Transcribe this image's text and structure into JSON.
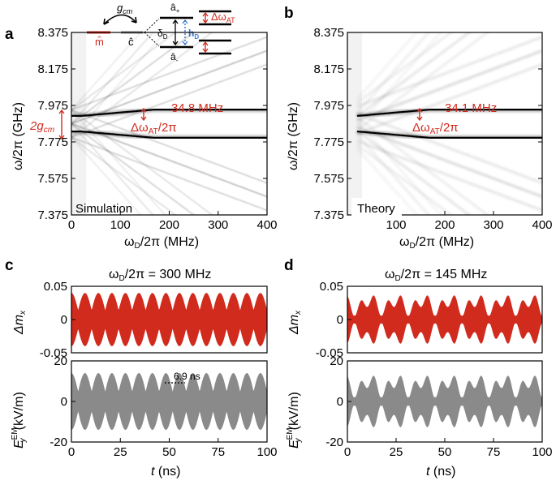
{
  "colors": {
    "red": "#d12b1e",
    "gray": "#8a8a8a",
    "blue": "#3a7bd5",
    "black": "#000000"
  },
  "panel_letters": {
    "a": "a",
    "b": "b",
    "c": "c",
    "d": "d"
  },
  "schematic": {
    "m_label": "m̂",
    "c_label": "ĉ",
    "g_label": "g",
    "g_sub": "cm",
    "a_plus": "â",
    "a_plus_sub": "+",
    "a_minus": "â",
    "a_minus_sub": "-",
    "delta_label": "δ",
    "delta_sub": "D",
    "h_label": "h",
    "h_sub": "D",
    "dw_label": "Δω",
    "dw_sub": "AT"
  },
  "chart_data": [
    {
      "panel": "a",
      "type": "heatmap",
      "title": "",
      "xlabel": "ωD/2π (MHz)",
      "ylabel": "ω/2π (GHz)",
      "xlim": [
        0,
        400
      ],
      "ylim": [
        7.375,
        8.375
      ],
      "x_ticks": [
        "0",
        "100",
        "200",
        "300",
        "400"
      ],
      "y_ticks": [
        "8.375",
        "8.175",
        "7.975",
        "7.775",
        "7.575",
        "7.375"
      ],
      "label": "Simulation",
      "annotation_split": "34.8 MHz",
      "annotation_delta": "ΔωAT/2π",
      "annotation_coupling": "2gcm",
      "upper_branch_end": 7.9525,
      "lower_branch_end": 7.7975
    },
    {
      "panel": "b",
      "type": "heatmap",
      "title": "",
      "xlabel": "ωD/2π (MHz)",
      "ylabel": "ω/2π (GHz)",
      "xlim": [
        0,
        400
      ],
      "ylim": [
        7.375,
        8.375
      ],
      "x_ticks": [
        "100",
        "200",
        "300",
        "400"
      ],
      "y_ticks": [
        "8.375",
        "8.175",
        "7.975",
        "7.775",
        "7.575",
        "7.375"
      ],
      "label": "Theory",
      "annotation_split": "34.1 MHz",
      "annotation_delta": "ΔωAT/2π",
      "upper_branch_end": 7.9525,
      "lower_branch_end": 7.7975
    },
    {
      "panel": "c",
      "type": "line",
      "title": "ωD/2π = 300 MHz",
      "xlabel": "t (ns)",
      "xlim": [
        0,
        100
      ],
      "x_ticks": [
        "0",
        "25",
        "50",
        "75",
        "100"
      ],
      "series": [
        {
          "name": "Δmx",
          "ylabel": "Δmx",
          "ylim": [
            -0.05,
            0.05
          ],
          "y_ticks": [
            "0.05",
            "0",
            "-0.05"
          ],
          "amplitude": 0.04,
          "beat_period_ns": 6.9
        },
        {
          "name": "EyEM",
          "ylabel": "EyEM (kV/m)",
          "ylim": [
            -20,
            20
          ],
          "y_ticks": [
            "20",
            "0",
            "-20"
          ],
          "amplitude": 14,
          "beat_period_ns": 6.9
        }
      ],
      "annotation": "6.9 ns"
    },
    {
      "panel": "d",
      "type": "line",
      "title": "ωD/2π = 145 MHz",
      "xlabel": "t (ns)",
      "xlim": [
        0,
        100
      ],
      "x_ticks": [
        "0",
        "25",
        "50",
        "75",
        "100"
      ],
      "series": [
        {
          "name": "Δmx",
          "ylabel": "Δmx",
          "ylim": [
            -0.05,
            0.05
          ],
          "y_ticks": [
            "0.05",
            "0",
            "-0.05"
          ],
          "amplitude": 0.04
        },
        {
          "name": "EyEM",
          "ylabel": "EyEM (kV/m)",
          "ylim": [
            -20,
            20
          ],
          "y_ticks": [
            "20",
            "0",
            "-20"
          ],
          "amplitude": 14
        }
      ]
    }
  ]
}
